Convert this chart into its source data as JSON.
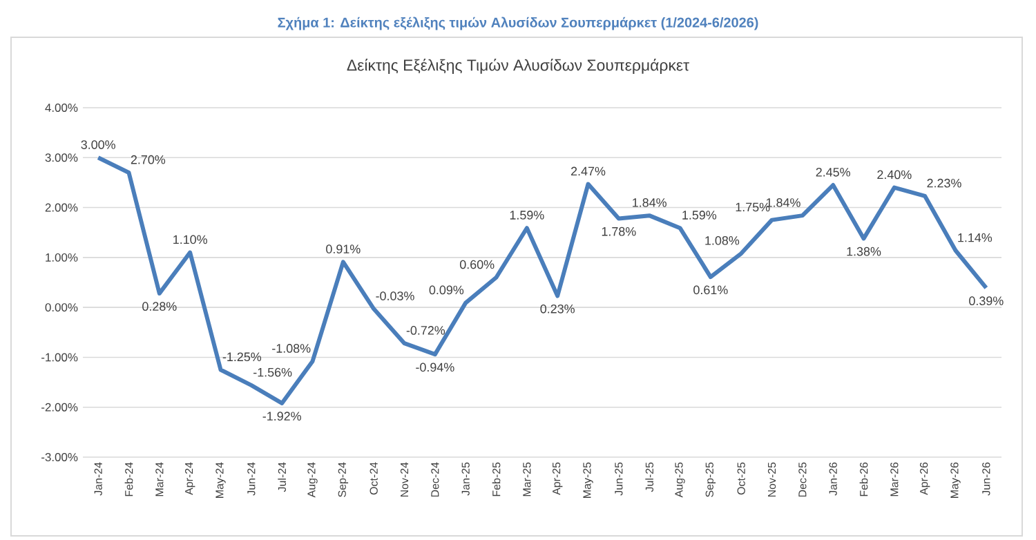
{
  "chart_data": {
    "type": "line",
    "title": "Σχήμα 1: Δείκτης εξέλιξης τιμών Αλυσίδων Σουπερμάρκετ (1/2024-6/2026)",
    "subtitle": "Δείκτης Εξέλιξης Τιμών Αλυσίδων Σουπερμάρκετ",
    "categories": [
      "Jan-24",
      "Feb-24",
      "Mar-24",
      "Apr-24",
      "May-24",
      "Jun-24",
      "Jul-24",
      "Aug-24",
      "Sep-24",
      "Oct-24",
      "Nov-24",
      "Dec-24",
      "Jan-25",
      "Feb-25",
      "Mar-25",
      "Apr-25",
      "May-25",
      "Jun-25",
      "Jul-25",
      "Aug-25",
      "Sep-25",
      "Oct-25",
      "Nov-25",
      "Dec-25",
      "Jan-26",
      "Feb-26",
      "Mar-26",
      "Apr-26",
      "May-26",
      "Jun-26"
    ],
    "values": [
      3.0,
      2.7,
      0.28,
      1.1,
      -1.25,
      -1.56,
      -1.92,
      -1.08,
      0.91,
      -0.03,
      -0.72,
      -0.94,
      0.09,
      0.6,
      1.59,
      0.23,
      2.47,
      1.78,
      1.84,
      1.59,
      0.61,
      1.08,
      1.75,
      1.84,
      2.45,
      1.38,
      2.4,
      2.23,
      1.14,
      0.39
    ],
    "value_labels": [
      "3.00%",
      "2.70%",
      "0.28%",
      "1.10%",
      "-1.25%",
      "-1.56%",
      "-1.92%",
      "-1.08%",
      "0.91%",
      "-0.03%",
      "-0.72%",
      "-0.94%",
      "0.09%",
      "0.60%",
      "1.59%",
      "0.23%",
      "2.47%",
      "1.78%",
      "1.84%",
      "1.59%",
      "0.61%",
      "1.08%",
      "1.75%",
      "1.84%",
      "2.45%",
      "1.38%",
      "2.40%",
      "2.23%",
      "1.14%",
      "0.39%"
    ],
    "color": "#4a7ebb",
    "ylim": [
      -3,
      4
    ],
    "yticks": [
      {
        "value": 4,
        "label": "4.00%"
      },
      {
        "value": 3,
        "label": "3.00%"
      },
      {
        "value": 2,
        "label": "2.00%"
      },
      {
        "value": 1,
        "label": "1.00%"
      },
      {
        "value": 0,
        "label": "0.00%"
      },
      {
        "value": -1,
        "label": "-1.00%"
      },
      {
        "value": -2,
        "label": "-2.00%"
      },
      {
        "value": -3,
        "label": "-3.00%"
      }
    ],
    "grid": "y"
  }
}
